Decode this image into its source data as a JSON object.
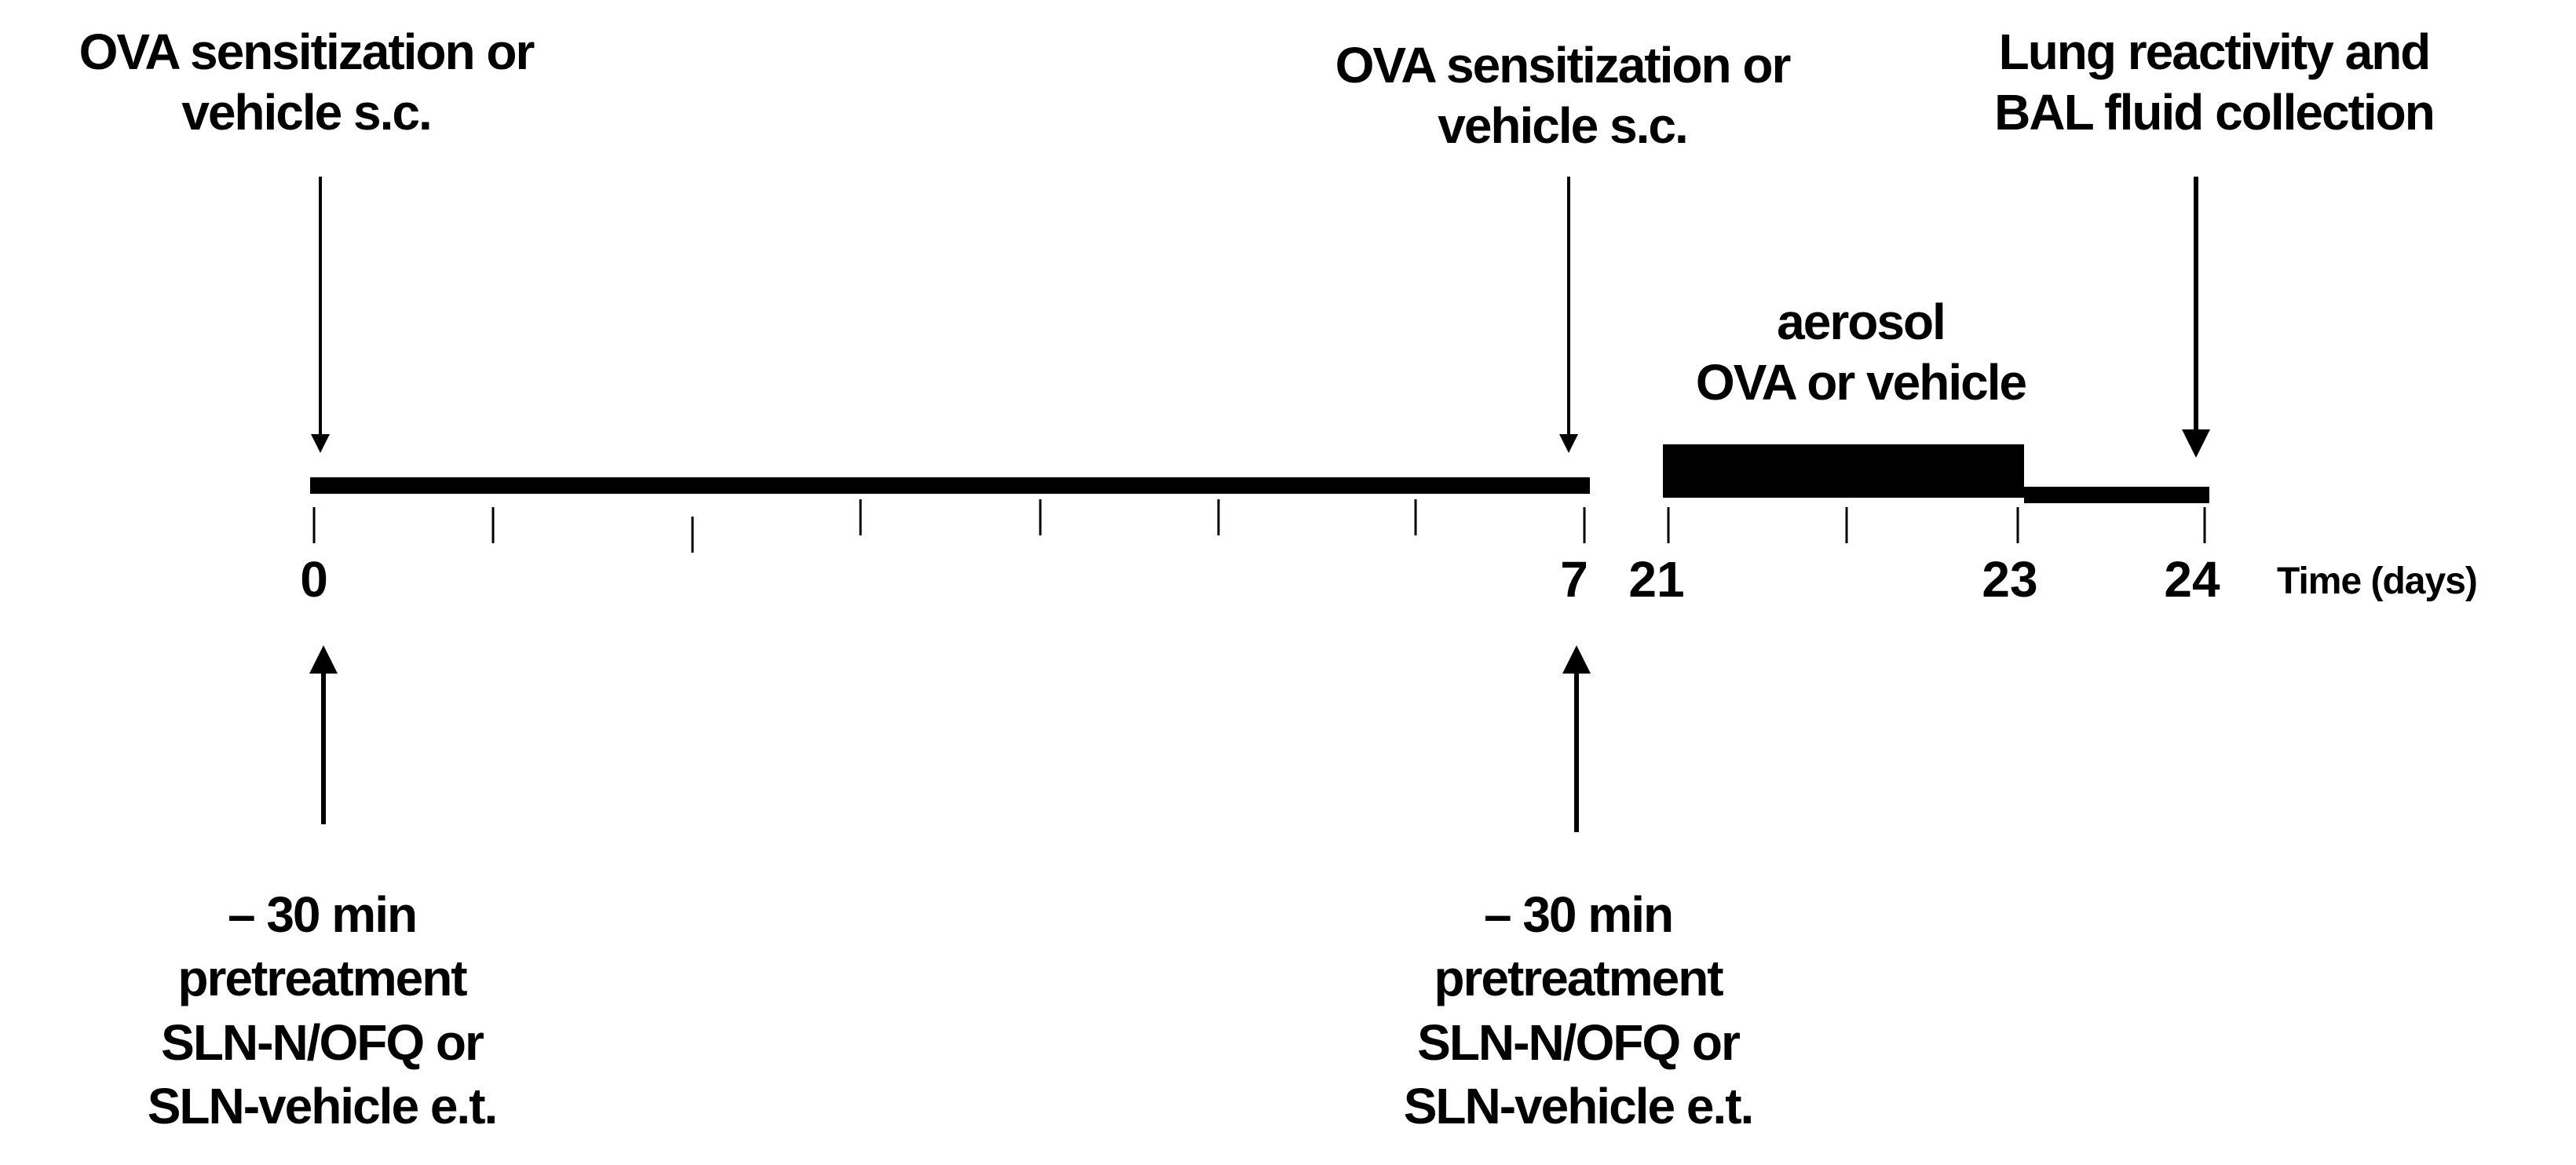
{
  "diagram": {
    "top_events": [
      {
        "line1": "OVA sensitization or",
        "line2": "vehicle s.c."
      },
      {
        "line1": "OVA sensitization or",
        "line2": "vehicle s.c."
      },
      {
        "line1": "Lung reactivity and",
        "line2": "BAL fluid collection"
      }
    ],
    "aerosol": {
      "line1": "aerosol",
      "line2": "OVA or vehicle"
    },
    "bottom_events": [
      {
        "line1": "– 30 min",
        "line2": "pretreatment",
        "line3": "SLN-N/OFQ or",
        "line4": "SLN-vehicle e.t."
      },
      {
        "line1": "– 30 min",
        "line2": "pretreatment",
        "line3": "SLN-N/OFQ or",
        "line4": "SLN-vehicle e.t."
      }
    ],
    "tick_labels": [
      "0",
      "7",
      "21",
      "23",
      "24"
    ],
    "axis_label": "Time (days)",
    "colors": {
      "ink": "#000000",
      "background": "#ffffff"
    }
  }
}
